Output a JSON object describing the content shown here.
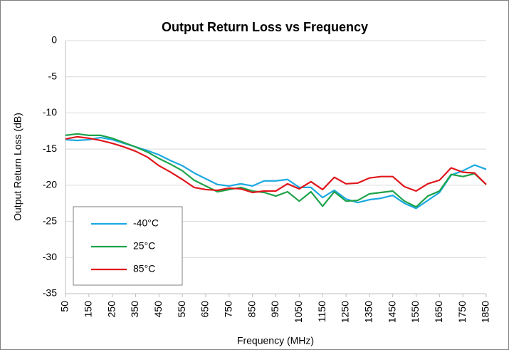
{
  "chart_data": {
    "type": "line",
    "title": "Output Return Loss vs Frequency",
    "x_label": "Frequency (MHz)",
    "y_label": "Output Return Loss (dB)",
    "x": [
      50,
      100,
      150,
      200,
      250,
      300,
      350,
      400,
      450,
      500,
      550,
      600,
      650,
      700,
      750,
      800,
      850,
      900,
      950,
      1000,
      1050,
      1100,
      1150,
      1200,
      1250,
      1300,
      1350,
      1400,
      1450,
      1500,
      1550,
      1600,
      1650,
      1700,
      1750,
      1800,
      1850
    ],
    "xlim": [
      50,
      1850
    ],
    "xticks": [
      50,
      150,
      250,
      350,
      450,
      550,
      650,
      750,
      850,
      950,
      1050,
      1150,
      1250,
      1350,
      1450,
      1550,
      1650,
      1750,
      1850
    ],
    "ylim": [
      -35,
      0
    ],
    "yticks": [
      0,
      -5,
      -10,
      -15,
      -20,
      -25,
      -30,
      -35
    ],
    "grid": true,
    "legend": "lower left",
    "series": [
      {
        "name": "-40°C",
        "color": "#1ca9e1",
        "values": [
          -13.7,
          -13.8,
          -13.7,
          -13.4,
          -13.7,
          -14.2,
          -14.7,
          -15.2,
          -15.8,
          -16.6,
          -17.3,
          -18.3,
          -19.1,
          -19.9,
          -20.1,
          -19.8,
          -20.1,
          -19.4,
          -19.4,
          -19.2,
          -20.3,
          -20.3,
          -21.7,
          -20.7,
          -21.9,
          -22.4,
          -22.0,
          -21.8,
          -21.4,
          -22.5,
          -23.2,
          -22.1,
          -21.0,
          -18.6,
          -18.0,
          -17.2,
          -17.8
        ]
      },
      {
        "name": "25°C",
        "color": "#1ea34a",
        "values": [
          -13.1,
          -12.9,
          -13.1,
          -13.1,
          -13.5,
          -14.1,
          -14.7,
          -15.4,
          -16.3,
          -17.1,
          -18.0,
          -19.3,
          -20.1,
          -20.9,
          -20.6,
          -20.3,
          -20.8,
          -21.0,
          -21.5,
          -20.9,
          -22.2,
          -20.9,
          -22.9,
          -20.9,
          -22.2,
          -22.1,
          -21.2,
          -21.0,
          -20.8,
          -22.2,
          -23.0,
          -21.5,
          -20.8,
          -18.5,
          -18.8,
          -18.4,
          -19.9
        ]
      },
      {
        "name": "85°C",
        "color": "#e0161c",
        "values": [
          -13.6,
          -13.3,
          -13.5,
          -13.8,
          -14.2,
          -14.7,
          -15.3,
          -16.1,
          -17.3,
          -18.2,
          -19.2,
          -20.3,
          -20.6,
          -20.7,
          -20.4,
          -20.5,
          -21.0,
          -20.8,
          -20.8,
          -19.8,
          -20.5,
          -19.5,
          -20.6,
          -18.9,
          -19.8,
          -19.7,
          -19.0,
          -18.8,
          -18.8,
          -20.2,
          -20.8,
          -19.8,
          -19.3,
          -17.6,
          -18.2,
          -18.3,
          -19.9
        ]
      }
    ]
  }
}
